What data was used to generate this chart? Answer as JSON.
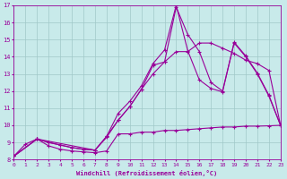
{
  "xlabel": "Windchill (Refroidissement éolien,°C)",
  "background_color": "#c8eaea",
  "grid_color": "#a0c8c8",
  "line_color": "#990099",
  "xlim": [
    0,
    23
  ],
  "ylim": [
    8,
    17
  ],
  "xticks": [
    0,
    1,
    2,
    3,
    4,
    5,
    6,
    7,
    8,
    9,
    10,
    11,
    12,
    13,
    14,
    15,
    16,
    17,
    18,
    19,
    20,
    21,
    22,
    23
  ],
  "yticks": [
    8,
    9,
    10,
    11,
    12,
    13,
    14,
    15,
    16,
    17
  ],
  "line1_x": [
    0,
    1,
    2,
    3,
    4,
    5,
    6,
    7,
    8,
    9,
    10,
    11,
    12,
    13,
    14,
    15,
    16,
    17,
    18,
    19,
    20,
    21,
    22,
    23
  ],
  "line1_y": [
    8.2,
    8.9,
    9.2,
    8.8,
    8.6,
    8.5,
    8.45,
    8.4,
    8.5,
    9.5,
    9.5,
    9.6,
    9.6,
    9.7,
    9.7,
    9.75,
    9.8,
    9.85,
    9.9,
    9.9,
    9.95,
    9.95,
    9.97,
    10.0
  ],
  "line2_x": [
    0,
    2,
    3,
    4,
    5,
    6,
    7,
    8,
    9,
    10,
    11,
    12,
    13,
    14,
    15,
    16,
    17,
    18,
    19,
    20,
    21,
    22,
    23
  ],
  "line2_y": [
    8.2,
    9.2,
    9.0,
    8.85,
    8.7,
    8.6,
    8.55,
    9.3,
    10.3,
    11.1,
    12.1,
    13.5,
    13.7,
    16.9,
    15.3,
    14.3,
    12.5,
    12.0,
    14.8,
    14.0,
    13.0,
    11.7,
    10.0
  ],
  "line3_x": [
    0,
    2,
    3,
    4,
    5,
    6,
    7,
    8,
    9,
    10,
    11,
    12,
    13,
    14,
    15,
    16,
    17,
    18,
    19,
    20,
    21,
    22,
    23
  ],
  "line3_y": [
    8.2,
    9.2,
    9.0,
    8.85,
    8.7,
    8.6,
    8.55,
    9.35,
    10.7,
    11.4,
    12.3,
    13.6,
    14.4,
    17.0,
    14.35,
    12.65,
    12.15,
    11.95,
    14.85,
    14.05,
    13.05,
    11.75,
    10.0
  ],
  "line4_x": [
    0,
    2,
    7,
    8,
    9,
    10,
    11,
    12,
    13,
    14,
    15,
    16,
    17,
    18,
    19,
    20,
    21,
    22,
    23
  ],
  "line4_y": [
    8.2,
    9.2,
    8.55,
    9.35,
    10.3,
    11.1,
    12.1,
    13.0,
    13.7,
    14.3,
    14.3,
    14.8,
    14.8,
    14.5,
    14.2,
    13.8,
    13.6,
    13.2,
    10.0
  ]
}
